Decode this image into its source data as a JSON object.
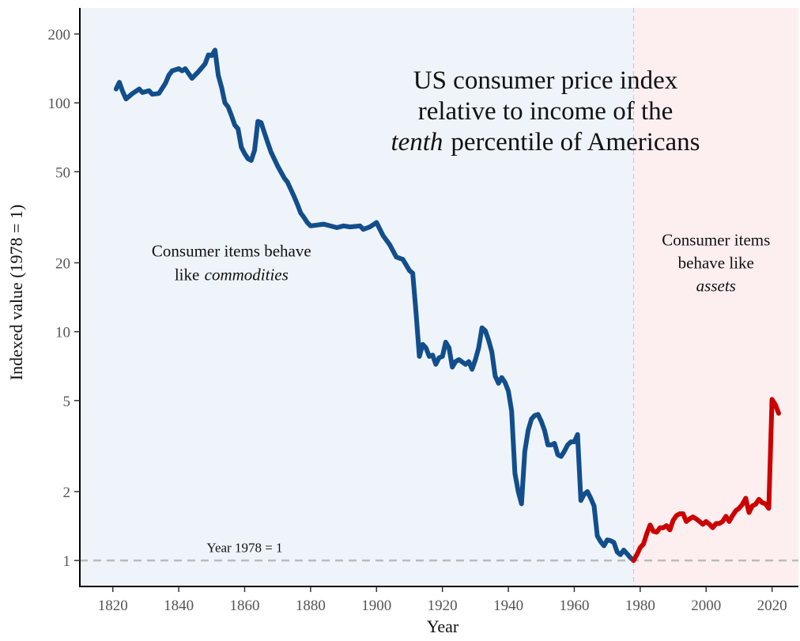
{
  "chart_data": {
    "type": "line",
    "title": [
      [
        {
          "text": "US consumer price index"
        }
      ],
      [
        {
          "text": "relative to income of the"
        }
      ],
      [
        {
          "text": "tenth",
          "italic": true
        },
        {
          "text": "percentile of Americans"
        }
      ]
    ],
    "x_label": "Year",
    "y_label": "Indexed value (1978 = 1)",
    "annotations": [
      {
        "lines": [
          [
            {
              "text": "Consumer items behave"
            }
          ],
          [
            {
              "text": "like"
            },
            {
              "text": "commodities",
              "italic": true
            }
          ]
        ],
        "x": 1856,
        "y": 20
      },
      {
        "lines": [
          [
            {
              "text": "Consumer items"
            }
          ],
          [
            {
              "text": "behave like"
            }
          ],
          [
            {
              "text": "assets",
              "italic": true
            }
          ]
        ],
        "x": 2003,
        "y": 20
      },
      {
        "lines": [
          [
            {
              "text": "Year 1978 = 1"
            }
          ]
        ],
        "x": 1860,
        "y": 1.15
      }
    ],
    "log_y": true,
    "xlim": [
      1810,
      2028
    ],
    "ylim": [
      0.77,
      260
    ],
    "xticks": [
      1820,
      1840,
      1860,
      1880,
      1900,
      1920,
      1940,
      1960,
      1980,
      2000,
      2020
    ],
    "yticks": [
      1,
      2,
      5,
      10,
      20,
      50,
      100,
      200
    ],
    "hline": 1,
    "vline": 1978,
    "region_colors": [
      "#eff4fa",
      "#fdeff0"
    ],
    "series": [
      {
        "color": "#124e8c",
        "x": [
          1821,
          1822,
          1823,
          1824,
          1826,
          1828,
          1829,
          1831,
          1832,
          1834,
          1836,
          1837,
          1838,
          1840,
          1841,
          1842,
          1844,
          1846,
          1848,
          1849,
          1850,
          1851,
          1852,
          1853,
          1854,
          1855,
          1856,
          1857,
          1858,
          1859,
          1860,
          1861,
          1862,
          1863,
          1864,
          1865,
          1866,
          1867,
          1868,
          1870,
          1872,
          1873,
          1875,
          1876,
          1877,
          1878,
          1879,
          1880,
          1884,
          1888,
          1890,
          1892,
          1895,
          1896,
          1898,
          1900,
          1902,
          1904,
          1906,
          1908,
          1910,
          1911,
          1912,
          1913,
          1914,
          1915,
          1916,
          1917,
          1918,
          1919,
          1920,
          1921,
          1922,
          1923,
          1924,
          1925,
          1927,
          1928,
          1929,
          1930,
          1931,
          1932,
          1933,
          1934,
          1935,
          1936,
          1937,
          1938,
          1939,
          1940,
          1941,
          1942,
          1943,
          1944,
          1945,
          1946,
          1947,
          1948,
          1949,
          1950,
          1951,
          1952,
          1953,
          1954,
          1955,
          1956,
          1957,
          1958,
          1959,
          1960,
          1961,
          1962,
          1963,
          1964,
          1965,
          1966,
          1967,
          1968,
          1969,
          1970,
          1971,
          1972,
          1973,
          1974,
          1975,
          1976,
          1977,
          1978
        ],
        "values": [
          115,
          123,
          112,
          104,
          110,
          115,
          111,
          113,
          109,
          110,
          122,
          132,
          138,
          141,
          138,
          141,
          128,
          137,
          148,
          162,
          161,
          170,
          132,
          117,
          100,
          96,
          88,
          80,
          77,
          64,
          60,
          57,
          56,
          62,
          83,
          82,
          74,
          67,
          61,
          53,
          47,
          45,
          39,
          36,
          33,
          31.6,
          30,
          29,
          29.5,
          28.5,
          29,
          28.7,
          29,
          28,
          28.7,
          30,
          26.3,
          24,
          21.2,
          20.7,
          18.5,
          18,
          12.1,
          7.8,
          8.8,
          8.5,
          7.8,
          7.9,
          7.2,
          7.7,
          7.8,
          9.0,
          8.5,
          7.0,
          7.4,
          7.55,
          7.2,
          7.4,
          6.85,
          7.55,
          8.5,
          10.4,
          10.1,
          9.2,
          8.15,
          6.4,
          5.95,
          6.3,
          6.0,
          5.5,
          4.5,
          2.4,
          2.0,
          1.77,
          3.0,
          3.7,
          4.15,
          4.3,
          4.35,
          4.05,
          3.7,
          3.2,
          3.2,
          3.25,
          2.9,
          2.85,
          3.0,
          3.2,
          3.3,
          3.3,
          3.55,
          1.83,
          1.95,
          2.0,
          1.87,
          1.73,
          1.28,
          1.21,
          1.16,
          1.23,
          1.22,
          1.2,
          1.09,
          1.06,
          1.11,
          1.07,
          1.03,
          1
        ]
      },
      {
        "color": "#cc0000",
        "x": [
          1978,
          1979,
          1980,
          1981,
          1982,
          1983,
          1984,
          1985,
          1986,
          1987,
          1988,
          1989,
          1990,
          1991,
          1992,
          1993,
          1994,
          1995,
          1996,
          1997,
          1998,
          1999,
          2000,
          2001,
          2002,
          2003,
          2004,
          2005,
          2006,
          2007,
          2008,
          2009,
          2010,
          2011,
          2012,
          2013,
          2014,
          2015,
          2016,
          2017,
          2018,
          2019,
          2020,
          2021,
          2022
        ],
        "values": [
          1,
          1.06,
          1.14,
          1.18,
          1.31,
          1.43,
          1.34,
          1.33,
          1.39,
          1.39,
          1.42,
          1.36,
          1.5,
          1.57,
          1.6,
          1.6,
          1.48,
          1.52,
          1.55,
          1.52,
          1.48,
          1.44,
          1.48,
          1.44,
          1.39,
          1.45,
          1.45,
          1.48,
          1.56,
          1.48,
          1.57,
          1.65,
          1.69,
          1.76,
          1.87,
          1.62,
          1.73,
          1.76,
          1.85,
          1.79,
          1.77,
          1.69,
          5.06,
          4.8,
          4.4
        ]
      }
    ]
  }
}
